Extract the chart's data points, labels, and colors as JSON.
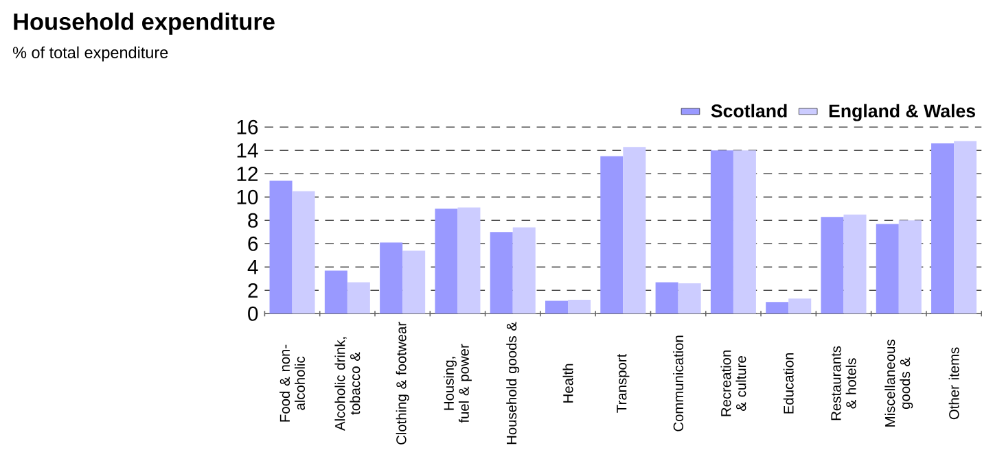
{
  "chart_data": {
    "type": "bar",
    "title": "Household expenditure",
    "subtitle": "% of total expenditure",
    "categories": [
      "Food & non-alcoholic",
      "Alcoholic drink, tobacco &",
      "Clothing & footwear",
      "Housing, fuel & power",
      "Household goods &",
      "Health",
      "Transport",
      "Communication",
      "Recreation & culture",
      "Education",
      "Restaurants & hotels",
      "Miscellaneous goods &",
      "Other items"
    ],
    "series": [
      {
        "name": "Scotland",
        "color": "#9999ff",
        "values": [
          11.4,
          3.7,
          6.1,
          9.0,
          7.0,
          1.1,
          13.5,
          2.7,
          14.0,
          1.0,
          8.3,
          7.7,
          14.6
        ]
      },
      {
        "name": "England & Wales",
        "color": "#ccccff",
        "values": [
          10.5,
          2.7,
          5.4,
          9.1,
          7.4,
          1.2,
          14.3,
          2.6,
          14.0,
          1.3,
          8.5,
          8.0,
          14.8
        ]
      }
    ],
    "ylim": [
      0,
      16
    ],
    "yticks": [
      0,
      2,
      4,
      6,
      8,
      10,
      12,
      14,
      16
    ],
    "grid": "y",
    "legend": "top right"
  }
}
